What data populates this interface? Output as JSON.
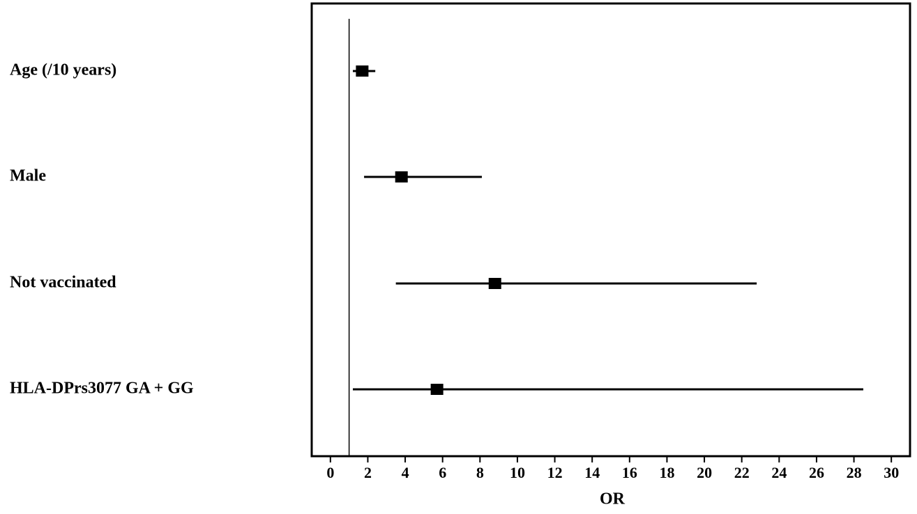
{
  "chart_data": {
    "type": "forest",
    "categories": [
      "Age (/10 years)",
      "Male",
      "Not vaccinated",
      "HLA-DPrs3077 GA + GG"
    ],
    "values": [
      1.7,
      3.8,
      8.8,
      5.7
    ],
    "lower": [
      1.2,
      1.8,
      3.5,
      1.2
    ],
    "upper": [
      2.4,
      8.1,
      22.8,
      28.5
    ],
    "reference": 1,
    "xlabel": "OR",
    "xlim": [
      -1,
      31
    ],
    "xticks": [
      0,
      2,
      4,
      6,
      8,
      10,
      12,
      14,
      16,
      18,
      20,
      22,
      24,
      26,
      28,
      30
    ],
    "color": "#000000"
  }
}
